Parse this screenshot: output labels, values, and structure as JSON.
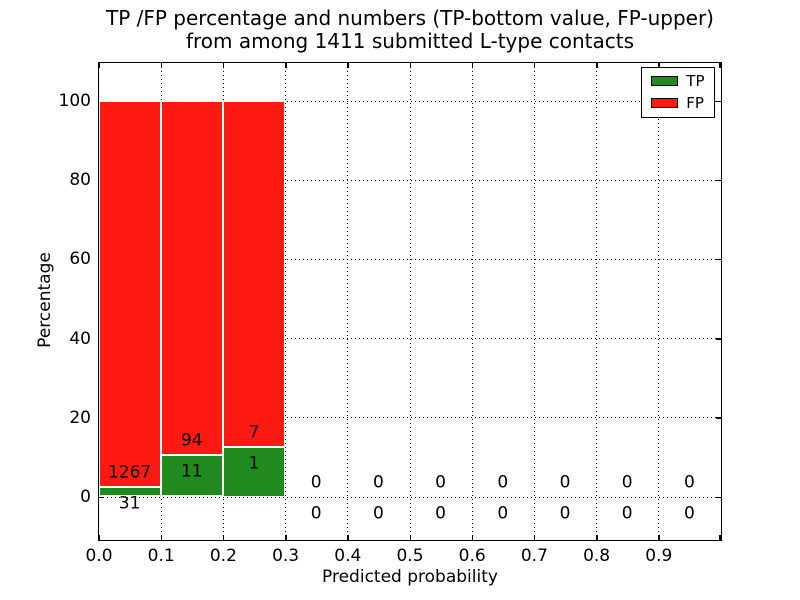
{
  "title": {
    "line1": "TP /FP percentage and numbers (TP-bottom value, FP-upper)",
    "line2": "from among 1411 submitted L-type contacts"
  },
  "chart_data": {
    "type": "bar",
    "stacked": true,
    "title": "TP /FP percentage and numbers (TP-bottom value, FP-upper)\nfrom among 1411 submitted L-type contacts",
    "xlabel": "Predicted probability",
    "ylabel": "Percentage",
    "total_submitted_contacts": 1411,
    "x_bin_edges": [
      0.0,
      0.1,
      0.2,
      0.3,
      0.4,
      0.5,
      0.6,
      0.7,
      0.8,
      0.9,
      1.0
    ],
    "x_tick_labels": [
      "0.0",
      "0.1",
      "0.2",
      "0.3",
      "0.4",
      "0.5",
      "0.6",
      "0.7",
      "0.8",
      "0.9"
    ],
    "y_ticks": [
      0,
      20,
      40,
      60,
      80,
      100
    ],
    "ylim": [
      -11,
      110
    ],
    "xlim": [
      0.0,
      1.0
    ],
    "grid": "dotted",
    "bar_units": "percent of bin total (TP+FP stacked to 100%)",
    "value_labels": "counts printed on bars: TP number below, FP number above",
    "legend_position": "upper right",
    "series": [
      {
        "name": "TP",
        "color": "#218a1e",
        "counts": [
          31,
          11,
          1,
          0,
          0,
          0,
          0,
          0,
          0,
          0
        ]
      },
      {
        "name": "FP",
        "color": "#fe1a13",
        "counts": [
          1267,
          94,
          7,
          0,
          0,
          0,
          0,
          0,
          0,
          0
        ]
      }
    ]
  },
  "colors": {
    "tp": "#218a1e",
    "fp": "#fe1a13",
    "text": "#000000",
    "background": "#ffffff"
  }
}
